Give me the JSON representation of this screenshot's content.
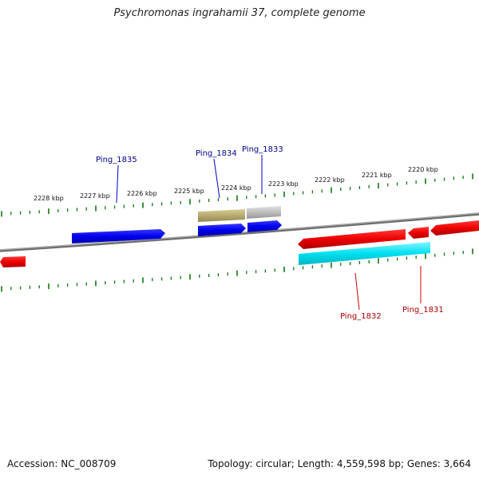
{
  "title": "Psychromonas ingrahamii 37, complete genome",
  "footer": {
    "accession": "Accession: NC_008709",
    "summary": "Topology: circular; Length: 4,559,598 bp; Genes: 3,664"
  },
  "ruler_labels": [
    "2228 kbp",
    "2227 kbp",
    "2226 kbp",
    "2225 kbp",
    "2224 kbp",
    "2223 kbp",
    "2222 kbp",
    "2221 kbp",
    "2220 kbp"
  ],
  "genes": {
    "ping_1835": "Ping_1835",
    "ping_1834": "Ping_1834",
    "ping_1833": "Ping_1833",
    "ping_1832": "Ping_1832",
    "ping_1831": "Ping_1831"
  },
  "colors": {
    "forward_gene": "#0000ee",
    "reverse_gene": "#ee0000",
    "feature_cyan": "#00e0f0",
    "feature_olive": "#b8ab70",
    "feature_gray": "#bdbdbd",
    "tick": "#117711",
    "backbone": "#777777",
    "forward_label": "#00008b",
    "reverse_label": "#aa0000"
  }
}
